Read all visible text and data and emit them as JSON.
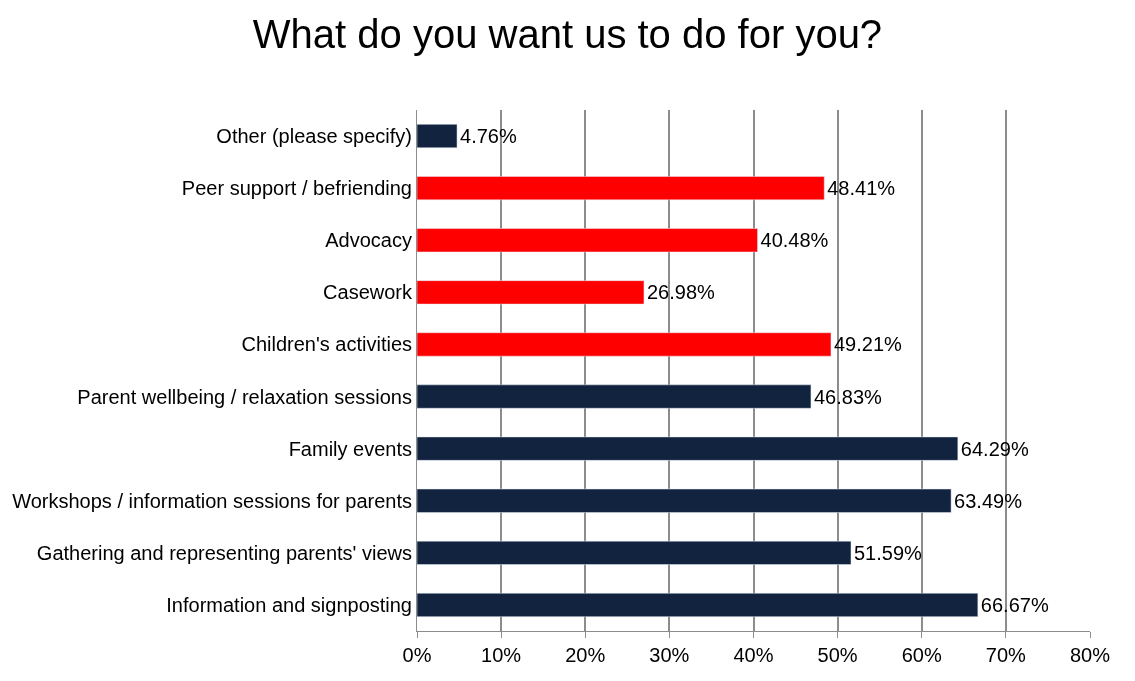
{
  "chart_data": {
    "type": "bar",
    "orientation": "horizontal",
    "title": "What do you want us to do for you?",
    "categories": [
      "Other (please specify)",
      "Peer support / befriending",
      "Advocacy",
      "Casework",
      "Children's activities",
      "Parent wellbeing / relaxation sessions",
      "Family events",
      "Workshops / information sessions for parents",
      "Gathering and representing parents' views",
      "Information and signposting"
    ],
    "values": [
      4.76,
      48.41,
      40.48,
      26.98,
      49.21,
      46.83,
      64.29,
      63.49,
      51.59,
      66.67
    ],
    "value_labels": [
      "4.76%",
      "48.41%",
      "40.48%",
      "26.98%",
      "49.21%",
      "46.83%",
      "64.29%",
      "63.49%",
      "51.59%",
      "66.67%"
    ],
    "colors": [
      "#12233f",
      "#ff0000",
      "#ff0000",
      "#ff0000",
      "#ff0000",
      "#12233f",
      "#12233f",
      "#12233f",
      "#12233f",
      "#12233f"
    ],
    "xlim": [
      0,
      80
    ],
    "xticks": [
      {
        "value": 0,
        "label": "0%"
      },
      {
        "value": 10,
        "label": "10%"
      },
      {
        "value": 20,
        "label": "20%"
      },
      {
        "value": 30,
        "label": "30%"
      },
      {
        "value": 40,
        "label": "40%"
      },
      {
        "value": 50,
        "label": "50%"
      },
      {
        "value": 60,
        "label": "60%"
      },
      {
        "value": 70,
        "label": "70%"
      },
      {
        "value": 80,
        "label": "80%"
      }
    ],
    "grid": "x"
  }
}
